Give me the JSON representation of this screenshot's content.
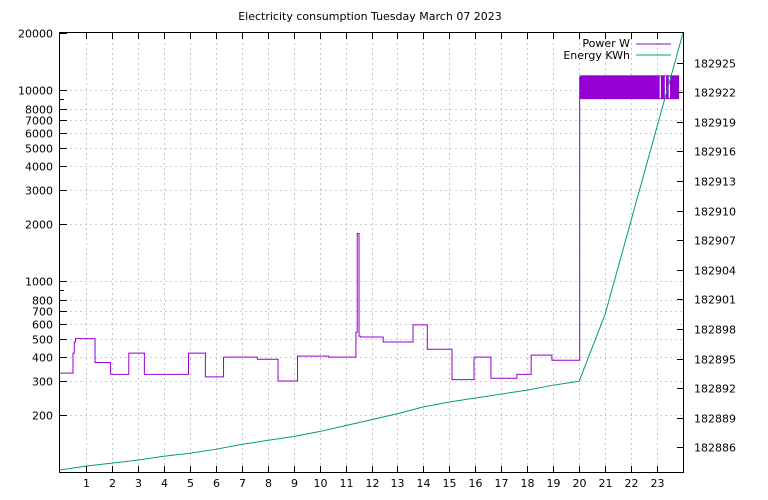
{
  "chart_data": {
    "type": "line",
    "title": "Electricity consumption Tuesday March 07 2023",
    "xlabel": "",
    "ylabel": "",
    "y2label": "",
    "x_ticks": [
      "1",
      "2",
      "3",
      "4",
      "5",
      "6",
      "7",
      "8",
      "9",
      "10",
      "11",
      "12",
      "13",
      "14",
      "15",
      "16",
      "17",
      "18",
      "19",
      "20",
      "21",
      "22",
      "23"
    ],
    "xlim": [
      0,
      24
    ],
    "ylim": [
      100,
      20000
    ],
    "y_scale": "log",
    "y_ticks": [
      200,
      300,
      400,
      500,
      600,
      700,
      800,
      1000,
      2000,
      3000,
      4000,
      5000,
      6000,
      7000,
      8000,
      10000,
      20000
    ],
    "y2lim": [
      182883.5,
      182928
    ],
    "y2_ticks": [
      "182886",
      "182889",
      "182892",
      "182895",
      "182898",
      "182901",
      "182904",
      "182907",
      "182910",
      "182913",
      "182916",
      "182919",
      "182922",
      "182925"
    ],
    "grid": true,
    "legend": "top-right",
    "series": [
      {
        "name": "Power W",
        "color": "#9400d3",
        "axis": "y",
        "step": true,
        "x": [
          0.0,
          0.5,
          0.5,
          0.55,
          0.55,
          0.6,
          1.35,
          1.95,
          2.65,
          3.25,
          4.95,
          5.6,
          6.3,
          7.6,
          8.4,
          9.15,
          10.35,
          11.4,
          11.45,
          11.52,
          11.58,
          12.45,
          13.6,
          14.15,
          15.1,
          15.95,
          16.6,
          17.6,
          18.15,
          18.95,
          20.0,
          20.02
        ],
        "y": [
          330,
          330,
          420,
          420,
          480,
          500,
          375,
          325,
          420,
          325,
          420,
          315,
          400,
          390,
          300,
          405,
          400,
          540,
          1780,
          515,
          510,
          480,
          590,
          440,
          305,
          400,
          310,
          325,
          410,
          385,
          385,
          11800
        ]
      },
      {
        "name": "Energy KWh",
        "color": "#009e73",
        "axis": "y2",
        "x": [
          0,
          1,
          2,
          3,
          4,
          5,
          6,
          7,
          8,
          9,
          10,
          11,
          12,
          13,
          14,
          15,
          16,
          17,
          18,
          19,
          20,
          21,
          22,
          23,
          24
        ],
        "y": [
          182883.7,
          182884.1,
          182884.4,
          182884.7,
          182885.1,
          182885.4,
          182885.8,
          182886.3,
          182886.7,
          182887.1,
          182887.6,
          182888.2,
          182888.8,
          182889.4,
          182890.1,
          182890.6,
          182891.0,
          182891.4,
          182891.8,
          182892.3,
          182892.7,
          182899.5,
          182909.0,
          182918.5,
          182928.0
        ]
      }
    ],
    "power_band": {
      "x_start": 20.02,
      "x_end": 23.85,
      "y_low": 9000,
      "y_high": 12000
    }
  }
}
